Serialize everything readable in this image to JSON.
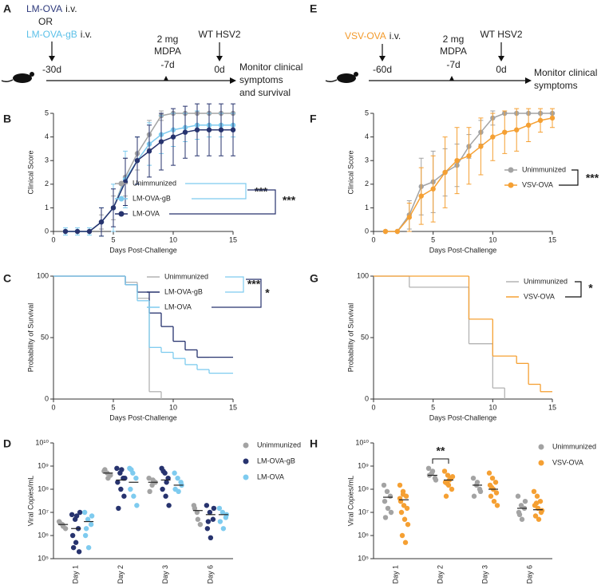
{
  "panel_labels": [
    "A",
    "B",
    "C",
    "D",
    "E",
    "F",
    "G",
    "H"
  ],
  "timelines": [
    {
      "vaccines": [
        {
          "name": "LM-OVA",
          "route": "i.v.",
          "color": "#2e3a7c"
        },
        {
          "name": "LM-OVA-gB",
          "route": "i.v.",
          "color": "#5bc0e8"
        }
      ],
      "connector": "OR",
      "events": [
        {
          "day": "-30d"
        },
        {
          "text": [
            "2 mg",
            "MDPA"
          ],
          "day": "-7d"
        },
        {
          "text": [
            "WT HSV2"
          ],
          "day": "0d"
        }
      ],
      "outcome": [
        "Monitor clinical",
        "symptoms",
        "and survival"
      ]
    },
    {
      "vaccines": [
        {
          "name": "VSV-OVA",
          "route": "i.v.",
          "color": "#f39a2b"
        }
      ],
      "events": [
        {
          "day": "-60d"
        },
        {
          "text": [
            "2 mg",
            "MDPA"
          ],
          "day": "-7d"
        },
        {
          "text": [
            "WT HSV2"
          ],
          "day": "0d"
        }
      ],
      "outcome": [
        "Monitor clinical",
        "symptoms"
      ]
    }
  ],
  "chart_data": [
    {
      "type": "line",
      "xlabel": "Days Post-Challenge",
      "ylabel": "Clinical Score",
      "xlim": [
        0,
        15
      ],
      "xticks": [
        0,
        5,
        10,
        15
      ],
      "ylim": [
        0,
        5
      ],
      "yticks": [
        0,
        1,
        2,
        3,
        4,
        5
      ],
      "x": [
        1,
        2,
        3,
        4,
        5,
        6,
        7,
        8,
        9,
        10,
        11,
        12,
        13,
        14,
        15
      ],
      "series": [
        {
          "name": "Unimmunized",
          "color": "#a3a3a3",
          "values": [
            0,
            0,
            0,
            0.4,
            1,
            2.3,
            3.3,
            4.1,
            4.9,
            5,
            5,
            5,
            5,
            5,
            5
          ],
          "errors": [
            0,
            0,
            0,
            0.3,
            0.5,
            0.8,
            0.7,
            0.6,
            0.2,
            0,
            0,
            0,
            0,
            0,
            0
          ]
        },
        {
          "name": "LM-OVA-gB",
          "color": "#7ecbef",
          "values": [
            0,
            0,
            0,
            0.4,
            1,
            2.2,
            3,
            3.7,
            4.1,
            4.3,
            4.4,
            4.5,
            4.5,
            4.5,
            4.5
          ],
          "errors": [
            0.15,
            0.15,
            0.15,
            0.6,
            1,
            1.2,
            1,
            0.9,
            0.8,
            0.7,
            0.6,
            0.6,
            0.5,
            0.5,
            0.5
          ]
        },
        {
          "name": "LM-OVA",
          "color": "#27336e",
          "values": [
            0,
            0,
            0,
            0.4,
            1,
            2.1,
            3,
            3.4,
            3.8,
            4,
            4.2,
            4.3,
            4.3,
            4.3,
            4.3
          ],
          "errors": [
            0,
            0,
            0,
            0.6,
            0.8,
            1,
            1,
            1.1,
            1.2,
            1.2,
            1.1,
            1.1,
            1.1,
            1.1,
            1.1
          ]
        }
      ],
      "annotations": [
        "***",
        "***"
      ]
    },
    {
      "type": "step",
      "xlabel": "Days Post-Challenge",
      "ylabel": "Probability of Survival",
      "xlim": [
        0,
        15
      ],
      "xticks": [
        0,
        5,
        10,
        15
      ],
      "ylim": [
        0,
        100
      ],
      "yticks": [
        0,
        50,
        100
      ],
      "series": [
        {
          "name": "Unimmunized",
          "color": "#b3b3b3",
          "x": [
            0,
            6,
            7,
            8,
            9
          ],
          "values": [
            100,
            95,
            82,
            6,
            0
          ]
        },
        {
          "name": "LM-OVA-gB",
          "color": "#27336e",
          "x": [
            0,
            6,
            7,
            8,
            9,
            10,
            11,
            12,
            13,
            15
          ],
          "values": [
            100,
            93,
            87,
            70,
            59,
            47,
            40,
            34,
            34,
            34
          ]
        },
        {
          "name": "LM-OVA",
          "color": "#7ecbef",
          "x": [
            0,
            6,
            7,
            8,
            9,
            10,
            11,
            12,
            13,
            15
          ],
          "values": [
            100,
            93,
            80,
            42,
            38,
            33,
            28,
            24,
            21,
            21
          ]
        }
      ],
      "annotations": [
        "***",
        "*"
      ]
    },
    {
      "type": "dot",
      "ylabel": "Viral Copies/mL",
      "log_y": true,
      "ylim": [
        100000.0,
        10000000000.0
      ],
      "yticks": [
        {
          "value": 100000.0,
          "label": "10⁵"
        },
        {
          "value": 1000000.0,
          "label": "10⁶"
        },
        {
          "value": 10000000.0,
          "label": "10⁷"
        },
        {
          "value": 100000000.0,
          "label": "10⁸"
        },
        {
          "value": 1000000000.0,
          "label": "10⁹"
        },
        {
          "value": 10000000000.0,
          "label": "10¹⁰"
        }
      ],
      "categories": [
        "Day 1",
        "Day 2",
        "Day 3",
        "Day 6"
      ],
      "series": [
        {
          "name": "Unimmunized",
          "color": "#a3a3a3",
          "values": [
            [
              4000000.0,
              3000000.0,
              2000000.0,
              3500000.0,
              2500000.0
            ],
            [
              600000000.0,
              500000000.0,
              400000000.0,
              700000000.0,
              300000000.0
            ],
            [
              300000000.0,
              150000000.0,
              200000000.0,
              80000000.0,
              250000000.0
            ],
            [
              20000000.0,
              10000000.0,
              3000000.0,
              15000000.0,
              5000000.0
            ]
          ],
          "means": [
            3000000.0,
            500000000.0,
            200000000.0,
            12000000.0
          ]
        },
        {
          "name": "LM-OVA-gB",
          "color": "#27336e",
          "values": [
            [
              8000000.0,
              5000000.0,
              2000000.0,
              1000000.0,
              500000.0,
              200000.0,
              300000.0,
              7000000.0,
              10000000.0
            ],
            [
              800000000.0,
              500000000.0,
              300000000.0,
              200000000.0,
              100000000.0,
              50000000.0,
              15000000.0,
              700000000.0,
              300000000.0
            ],
            [
              800000000.0,
              500000000.0,
              300000000.0,
              100000000.0,
              50000000.0,
              20000000.0,
              600000000.0,
              200000000.0
            ],
            [
              20000000.0,
              10000000.0,
              5000000.0,
              2000000.0,
              800000.0,
              15000000.0,
              4000000.0
            ]
          ],
          "means": [
            2000000.0,
            250000000.0,
            250000000.0,
            8000000.0
          ]
        },
        {
          "name": "LM-OVA",
          "color": "#7ecbef",
          "values": [
            [
              10000000.0,
              5000000.0,
              3000000.0,
              1000000.0,
              300000.0,
              7000000.0,
              2000000.0
            ],
            [
              800000000.0,
              500000000.0,
              300000000.0,
              100000000.0,
              50000000.0,
              20000000.0,
              700000000.0
            ],
            [
              500000000.0,
              300000000.0,
              200000000.0,
              100000000.0,
              80000000.0,
              150000000.0
            ],
            [
              15000000.0,
              10000000.0,
              6000000.0,
              4000000.0,
              2000000.0,
              8000000.0
            ]
          ],
          "means": [
            4000000.0,
            200000000.0,
            150000000.0,
            8000000.0
          ]
        }
      ]
    },
    {
      "type": "line",
      "xlabel": "Days Post-Challenge",
      "ylabel": "Clinical Score",
      "xlim": [
        0,
        15
      ],
      "xticks": [
        0,
        5,
        10,
        15
      ],
      "ylim": [
        0,
        5
      ],
      "yticks": [
        0,
        1,
        2,
        3,
        4,
        5
      ],
      "x": [
        1,
        2,
        3,
        4,
        5,
        6,
        7,
        8,
        9,
        10,
        11,
        12,
        13,
        14,
        15
      ],
      "series": [
        {
          "name": "Unimmunized",
          "color": "#a3a3a3",
          "values": [
            0,
            0,
            0.7,
            1.9,
            2.1,
            2.5,
            2.8,
            3.6,
            4.2,
            4.8,
            5,
            5,
            5,
            5,
            5
          ],
          "errors": [
            0,
            0,
            0.6,
            1.2,
            1.3,
            1,
            0.9,
            0.5,
            0.5,
            0.3,
            0,
            0,
            0,
            0,
            0
          ]
        },
        {
          "name": "VSV-OVA",
          "color": "#f5a033",
          "values": [
            0,
            0,
            0.6,
            1.5,
            1.8,
            2.5,
            3,
            3.2,
            3.6,
            4,
            4.2,
            4.3,
            4.5,
            4.7,
            4.8
          ],
          "errors": [
            0,
            0,
            0.6,
            1.2,
            1.4,
            1.5,
            1.4,
            1.2,
            1.2,
            1,
            0.9,
            0.9,
            0.7,
            0.5,
            0.4
          ]
        }
      ],
      "annotations": [
        "***"
      ]
    },
    {
      "type": "step",
      "xlabel": "Days Post-Challenge",
      "ylabel": "Probability of Survival",
      "xlim": [
        0,
        15
      ],
      "xticks": [
        0,
        5,
        10,
        15
      ],
      "ylim": [
        0,
        100
      ],
      "yticks": [
        0,
        50,
        100
      ],
      "series": [
        {
          "name": "Unimmunized",
          "color": "#b3b3b3",
          "x": [
            0,
            3,
            8,
            10,
            11
          ],
          "values": [
            100,
            91,
            45,
            9,
            0
          ]
        },
        {
          "name": "VSV-OVA",
          "color": "#f5a033",
          "x": [
            0,
            8,
            10,
            12,
            13,
            14,
            15
          ],
          "values": [
            100,
            65,
            35,
            29,
            12,
            6,
            6
          ]
        }
      ],
      "annotations": [
        "*"
      ]
    },
    {
      "type": "dot",
      "ylabel": "Viral Copies/mL",
      "log_y": true,
      "ylim": [
        100000.0,
        10000000000.0
      ],
      "yticks": [
        {
          "value": 100000.0,
          "label": "10⁵"
        },
        {
          "value": 1000000.0,
          "label": "10⁶"
        },
        {
          "value": 10000000.0,
          "label": "10⁷"
        },
        {
          "value": 100000000.0,
          "label": "10⁸"
        },
        {
          "value": 1000000000.0,
          "label": "10⁹"
        },
        {
          "value": 10000000000.0,
          "label": "10¹⁰"
        }
      ],
      "categories": [
        "Day 1",
        "Day 2",
        "Day 3",
        "Day 6"
      ],
      "series": [
        {
          "name": "Unimmunized",
          "color": "#a3a3a3",
          "values": [
            [
              150000000.0,
              80000000.0,
              50000000.0,
              30000000.0,
              15000000.0,
              10000000.0,
              6000000.0
            ],
            [
              800000000.0,
              500000000.0,
              300000000.0,
              400000000.0,
              600000000.0,
              250000000.0
            ],
            [
              300000000.0,
              150000000.0,
              100000000.0,
              50000000.0,
              200000000.0,
              80000000.0
            ],
            [
              50000000.0,
              20000000.0,
              15000000.0,
              10000000.0,
              5000000.0,
              30000000.0,
              8000000.0
            ]
          ],
          "means": [
            45000000.0,
            400000000.0,
            150000000.0,
            15000000.0
          ]
        },
        {
          "name": "VSV-OVA",
          "color": "#f5a033",
          "values": [
            [
              150000000.0,
              80000000.0,
              50000000.0,
              30000000.0,
              20000000.0,
              15000000.0,
              10000000.0,
              5000000.0,
              3000000.0,
              1000000.0,
              500000.0,
              40000000.0,
              60000000.0
            ],
            [
              600000000.0,
              400000000.0,
              300000000.0,
              200000000.0,
              150000000.0,
              100000000.0,
              50000000.0,
              250000000.0,
              350000000.0,
              180000000.0
            ],
            [
              500000000.0,
              300000000.0,
              200000000.0,
              150000000.0,
              100000000.0,
              70000000.0,
              50000000.0,
              30000000.0,
              20000000.0,
              120000000.0
            ],
            [
              80000000.0,
              50000000.0,
              30000000.0,
              20000000.0,
              15000000.0,
              10000000.0,
              7000000.0,
              5000000.0,
              12000000.0,
              25000000.0
            ]
          ],
          "means": [
            35000000.0,
            250000000.0,
            100000000.0,
            13000000.0
          ]
        }
      ],
      "annotations": [
        "**"
      ]
    }
  ]
}
